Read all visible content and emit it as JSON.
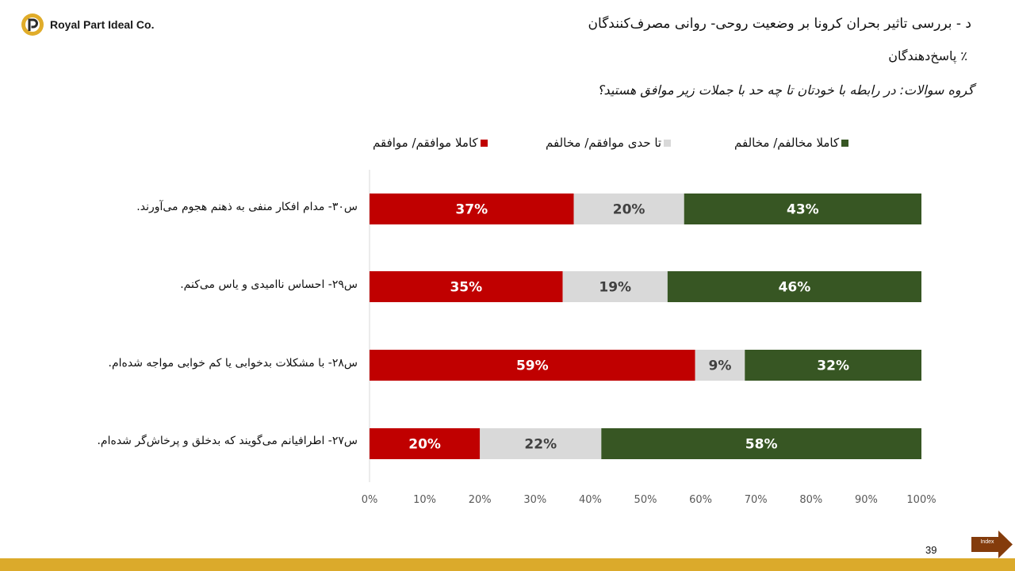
{
  "company": {
    "name": "Royal Part Ideal Co."
  },
  "title": "د - بررسی تاثیر بحران کرونا بر وضعیت روحی- روانی مصرف‌کنندگان",
  "subtitle": "٪ پاسخ‌دهندگان",
  "question": "گروه سوالات: در رابطه با خودتان تا چه حد با جملات زیر موافق هستید؟",
  "chart_data": {
    "type": "bar",
    "orientation": "horizontal",
    "stacked": true,
    "categories": [
      "س۳۰- مدام افکار منفی به ذهنم هجوم می‌آورند.",
      "س۲۹- احساس ناامیدی و یاس می‌کنم.",
      "س۲۸- با مشکلات بدخوابی یا کم خوابی مواجه شده‌ام.",
      "س۲۷- اطرافیانم می‌گویند که بدخلق و پرخاش‌گر شده‌ام."
    ],
    "series": [
      {
        "name": "کاملا موافقم/ موافقم",
        "color": "#c00000",
        "values": [
          37,
          35,
          59,
          20
        ],
        "labels": [
          "37%",
          "35%",
          "59%",
          "20%"
        ]
      },
      {
        "name": "تا حدی موافقم/ مخالفم",
        "color": "#d9d9d9",
        "values": [
          20,
          19,
          9,
          22
        ],
        "labels": [
          "20%",
          "19%",
          "9%",
          "22%"
        ]
      },
      {
        "name": "کاملا مخالفم/ مخالفم",
        "color": "#375623",
        "values": [
          43,
          46,
          32,
          58
        ],
        "labels": [
          "43%",
          "46%",
          "32%",
          "58%"
        ]
      }
    ],
    "xlim": [
      0,
      100
    ],
    "xticks": [
      "0%",
      "10%",
      "20%",
      "30%",
      "40%",
      "50%",
      "60%",
      "70%",
      "80%",
      "90%",
      "100%"
    ],
    "legend_position": "top",
    "grid": false
  },
  "footer": {
    "page_number": "39",
    "index_label": "Index",
    "bar_color": "#dbaa2b"
  }
}
